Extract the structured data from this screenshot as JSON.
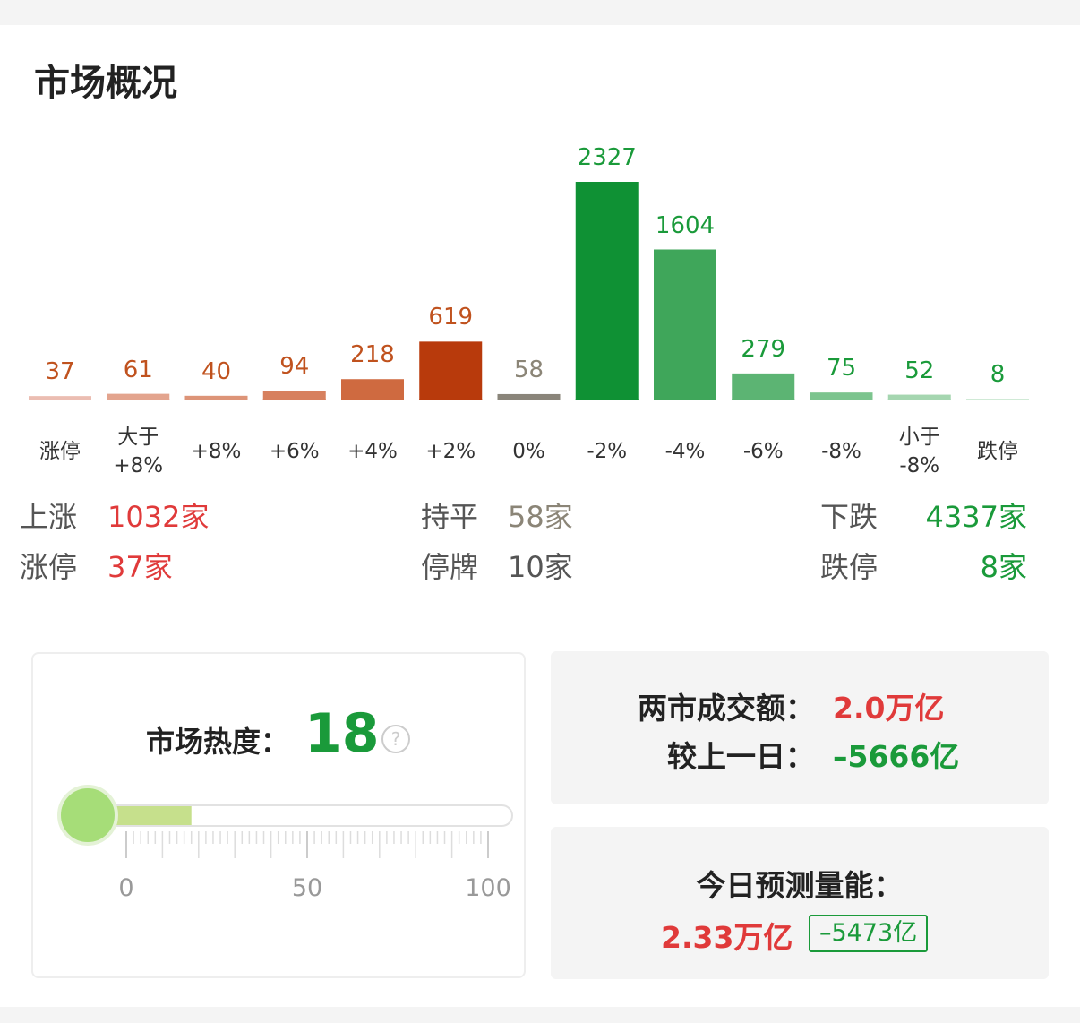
{
  "title": "市场概况",
  "chart_data": {
    "type": "bar",
    "categories": [
      "涨停",
      "大于\n+8%",
      "+8%",
      "+6%",
      "+4%",
      "+2%",
      "0%",
      "-2%",
      "-4%",
      "-6%",
      "-8%",
      "小于\n-8%",
      "跌停"
    ],
    "values": [
      37,
      61,
      40,
      94,
      218,
      619,
      58,
      2327,
      1604,
      279,
      75,
      52,
      8
    ],
    "colors": [
      "#ebbdb2",
      "#e3a48e",
      "#dd9478",
      "#d7805e",
      "#cf6a40",
      "#b83a0c",
      "#8a857a",
      "#0f9134",
      "#3fa65a",
      "#5cb473",
      "#7cc48e",
      "#a5d6b0",
      "#d0ead6"
    ],
    "label_colors": [
      "#c0521e",
      "#c0521e",
      "#c0521e",
      "#c0521e",
      "#c0521e",
      "#c0521e",
      "#8b8577",
      "#1a9a3a",
      "#1a9a3a",
      "#1a9a3a",
      "#1a9a3a",
      "#1a9a3a",
      "#1a9a3a"
    ]
  },
  "stats": [
    [
      {
        "label": "上涨",
        "value": "1032家",
        "color": "#e03a3a"
      },
      {
        "label": "持平",
        "value": "58家",
        "color": "#8b8577"
      },
      {
        "label": "下跌",
        "value": "4337家",
        "color": "#1a9a3a"
      }
    ],
    [
      {
        "label": "涨停",
        "value": "37家",
        "color": "#e03a3a"
      },
      {
        "label": "停牌",
        "value": "10家",
        "color": "#555555"
      },
      {
        "label": "跌停",
        "value": "8家",
        "color": "#1a9a3a"
      }
    ]
  ],
  "heat": {
    "label": "市场热度：",
    "value": 18,
    "range": [
      0,
      100
    ],
    "ticks": [
      0,
      50,
      100
    ]
  },
  "volume": {
    "turnover_label": "两市成交额：",
    "turnover": "2.0万亿",
    "change_label": "较上一日：",
    "change": "–5666亿",
    "forecast_label": "今日预测量能：",
    "forecast": "2.33万亿",
    "forecast_change": "–5473亿"
  }
}
